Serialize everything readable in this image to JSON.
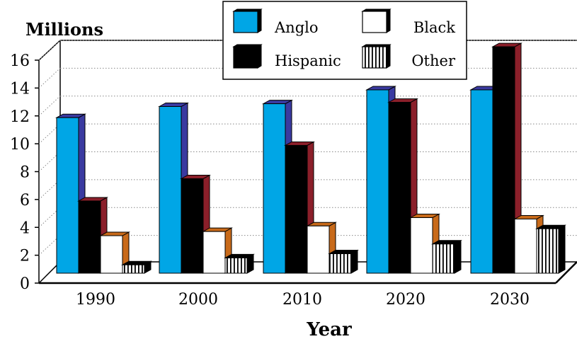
{
  "chart_data": {
    "type": "bar",
    "title": "",
    "ylabel": "Millions",
    "xlabel": "Year",
    "categories": [
      "1990",
      "2000",
      "2010",
      "2020",
      "2030"
    ],
    "ylim": [
      0,
      16
    ],
    "yticks": [
      0,
      2,
      4,
      6,
      8,
      10,
      12,
      14,
      16
    ],
    "grid": "horizontal dotted",
    "legend_position": "top-right",
    "series": [
      {
        "name": "Anglo",
        "values": [
          11.2,
          12.0,
          12.2,
          13.2,
          13.2
        ],
        "color": "#00a6e6",
        "side_color": "#3a3aa0",
        "pattern": "solid"
      },
      {
        "name": "Hispanic",
        "values": [
          5.2,
          6.8,
          9.2,
          12.3,
          16.3
        ],
        "color": "#000000",
        "side_color": "#8b1f2a",
        "pattern": "solid"
      },
      {
        "name": "Black",
        "values": [
          2.7,
          3.0,
          3.4,
          4.0,
          3.9
        ],
        "color": "#ffffff",
        "side_color": "#c86a1a",
        "pattern": "solid"
      },
      {
        "name": "Other",
        "values": [
          0.6,
          1.1,
          1.4,
          2.1,
          3.2
        ],
        "color": "#ffffff",
        "side_color": "#000000",
        "pattern": "vertical-stripes"
      }
    ]
  }
}
